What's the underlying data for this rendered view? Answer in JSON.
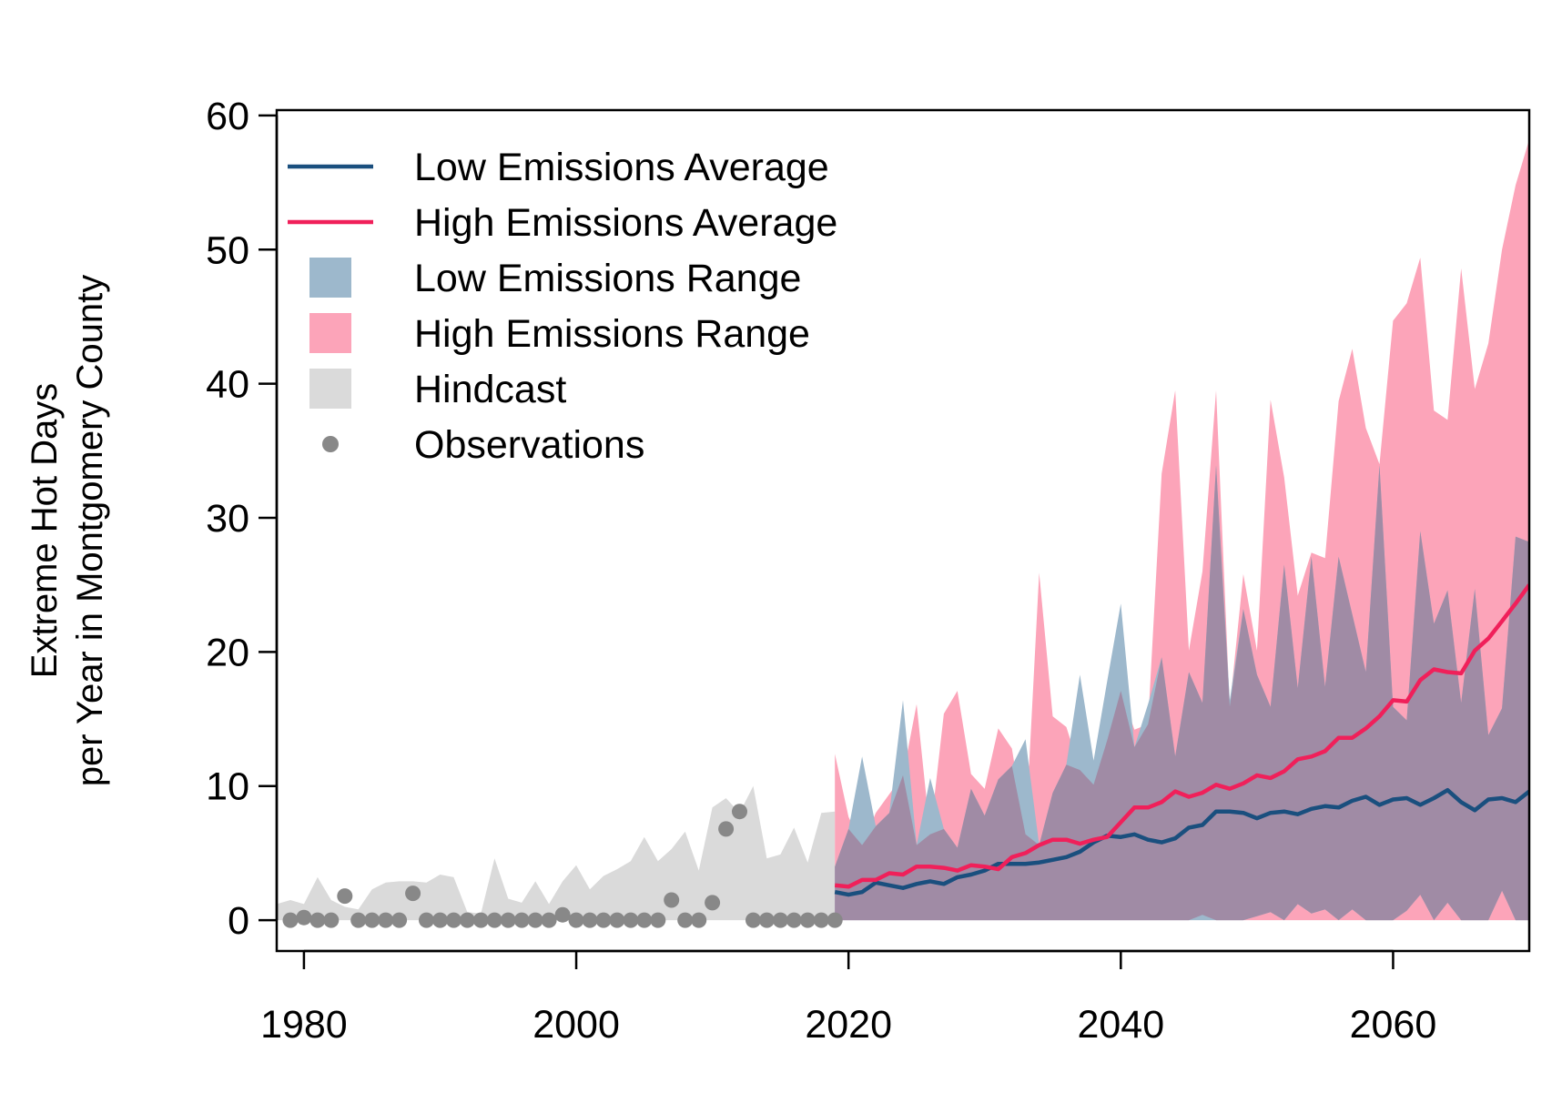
{
  "chart_data": {
    "type": "area",
    "title": "",
    "xlabel": "",
    "ylabel": [
      "Extreme Hot Days",
      "per Year in Montgomery County"
    ],
    "xlim": [
      1978,
      2070
    ],
    "ylim": [
      -2.3,
      60.4
    ],
    "x_ticks": [
      1980,
      2000,
      2020,
      2040,
      2060
    ],
    "y_ticks": [
      0,
      10,
      20,
      30,
      40,
      50,
      60
    ],
    "legend_position": "top-left",
    "legend": [
      {
        "label": "Low Emissions Average",
        "kind": "line",
        "color": "#1a4f7e"
      },
      {
        "label": "High Emissions Average",
        "kind": "line",
        "color": "#f0205a"
      },
      {
        "label": "Low Emissions Range",
        "kind": "fill",
        "color": "#9db8cc"
      },
      {
        "label": "High Emissions Range",
        "kind": "fill",
        "color": "#fca4b9"
      },
      {
        "label": "Hindcast",
        "kind": "fill",
        "color": "#dadada"
      },
      {
        "label": "Observations",
        "kind": "point",
        "color": "#888888"
      }
    ],
    "colors": {
      "low_avg": "#1a4f7e",
      "high_avg": "#f0205a",
      "low_range": "#9db8cc",
      "high_range": "#fca4b9",
      "overlap": "#a08ba5",
      "hindcast": "#dadada",
      "observations": "#888888"
    },
    "hindcast_range": {
      "x": [
        1978,
        1979,
        1980,
        1981,
        1982,
        1983,
        1984,
        1985,
        1986,
        1987,
        1988,
        1989,
        1990,
        1991,
        1992,
        1993,
        1994,
        1995,
        1996,
        1997,
        1998,
        1999,
        2000,
        2001,
        2002,
        2003,
        2004,
        2005,
        2006,
        2007,
        2008,
        2009,
        2010,
        2011,
        2012,
        2013,
        2014,
        2015,
        2016,
        2017,
        2018,
        2019
      ],
      "upper": [
        1.2,
        1.5,
        1.2,
        3.2,
        1.5,
        1.0,
        0.8,
        2.3,
        2.8,
        2.9,
        2.9,
        2.8,
        3.4,
        3.2,
        0.6,
        0.5,
        4.6,
        1.6,
        1.3,
        2.9,
        1.2,
        2.9,
        4.1,
        2.3,
        3.3,
        3.8,
        4.4,
        6.2,
        4.4,
        5.3,
        6.6,
        3.7,
        8.4,
        9.1,
        8.0,
        10.0,
        4.6,
        4.9,
        6.9,
        4.3,
        8.0,
        8.1
      ],
      "lower": [
        0,
        0,
        0,
        0,
        0,
        0,
        0,
        0,
        0,
        0,
        0,
        0,
        0,
        0,
        0,
        0,
        0,
        0,
        0,
        0,
        0,
        0,
        0,
        0,
        0,
        0,
        0,
        0,
        0,
        0,
        0,
        0,
        0,
        0,
        0,
        0,
        0,
        0,
        0,
        0,
        0,
        0
      ]
    },
    "observations": {
      "x": [
        1979,
        1980,
        1981,
        1982,
        1983,
        1984,
        1985,
        1986,
        1987,
        1988,
        1989,
        1990,
        1991,
        1992,
        1993,
        1994,
        1995,
        1996,
        1997,
        1998,
        1999,
        2000,
        2001,
        2002,
        2003,
        2004,
        2005,
        2006,
        2007,
        2008,
        2009,
        2010,
        2011,
        2012,
        2013,
        2014,
        2015,
        2016,
        2017,
        2018,
        2019
      ],
      "y": [
        0,
        0.2,
        0,
        0,
        1.8,
        0,
        0,
        0,
        0,
        2.0,
        0,
        0,
        0,
        0,
        0,
        0,
        0,
        0,
        0,
        0,
        0.4,
        0,
        0,
        0,
        0,
        0,
        0,
        0,
        1.5,
        0,
        0,
        1.3,
        6.8,
        8.1,
        0,
        0,
        0,
        0,
        0,
        0,
        0
      ]
    },
    "low_range": {
      "x": [
        2019,
        2020,
        2021,
        2022,
        2023,
        2024,
        2025,
        2026,
        2027,
        2028,
        2029,
        2030,
        2031,
        2032,
        2033,
        2034,
        2035,
        2036,
        2037,
        2038,
        2039,
        2040,
        2041,
        2042,
        2043,
        2044,
        2045,
        2046,
        2047,
        2048,
        2049,
        2050,
        2051,
        2052,
        2053,
        2054,
        2055,
        2056,
        2057,
        2058,
        2059,
        2060,
        2061,
        2062,
        2063,
        2064,
        2065,
        2066,
        2067,
        2068,
        2069,
        2070
      ],
      "upper": [
        4.0,
        6.8,
        12.2,
        7.0,
        8.0,
        16.4,
        5.6,
        10.6,
        6.8,
        5.4,
        9.8,
        7.8,
        10.5,
        11.5,
        13.5,
        5.6,
        9.5,
        11.6,
        18.3,
        11.9,
        17.8,
        23.6,
        12.9,
        16.1,
        19.6,
        12.2,
        18.5,
        16.2,
        33.9,
        16.4,
        23.2,
        18.3,
        15.9,
        26.5,
        17.3,
        27.1,
        17.4,
        27.1,
        22.8,
        18.5,
        33.9,
        15.9,
        14.9,
        29.0,
        22.1,
        24.6,
        16.2,
        24.7,
        13.8,
        15.8,
        28.6,
        28.2
      ],
      "lower": [
        0,
        0,
        0,
        0,
        0,
        0,
        0,
        0,
        0,
        0,
        0,
        0,
        0,
        0,
        0,
        0,
        0,
        0,
        0,
        0,
        0,
        0,
        0,
        0,
        0,
        0,
        0,
        0,
        0,
        0,
        0,
        0.3,
        0.6,
        0,
        1.2,
        0.5,
        0.8,
        0,
        0.8,
        0,
        0,
        0,
        0.7,
        1.9,
        0,
        1.3,
        0,
        0,
        0,
        2.2,
        0,
        0
      ]
    },
    "high_range": {
      "x": [
        2019,
        2020,
        2021,
        2022,
        2023,
        2024,
        2025,
        2026,
        2027,
        2028,
        2029,
        2030,
        2031,
        2032,
        2033,
        2034,
        2035,
        2036,
        2037,
        2038,
        2039,
        2040,
        2041,
        2042,
        2043,
        2044,
        2045,
        2046,
        2047,
        2048,
        2049,
        2050,
        2051,
        2052,
        2053,
        2054,
        2055,
        2056,
        2057,
        2058,
        2059,
        2060,
        2061,
        2062,
        2063,
        2064,
        2065,
        2066,
        2067,
        2068,
        2069,
        2070
      ],
      "upper": [
        12.4,
        7.7,
        5.6,
        8.0,
        9.4,
        10.8,
        16.1,
        6.4,
        15.4,
        17.1,
        10.9,
        9.8,
        14.3,
        12.8,
        6.4,
        25.9,
        15.2,
        14.4,
        11.2,
        10.1,
        13.4,
        17.1,
        14.2,
        14.6,
        33.3,
        39.5,
        20.1,
        26.0,
        39.5,
        15.9,
        25.8,
        20.1,
        38.8,
        33.0,
        24.2,
        27.4,
        27.0,
        38.7,
        42.6,
        36.7,
        34.0,
        44.7,
        46.0,
        49.4,
        38.0,
        37.3,
        48.6,
        39.6,
        43.0,
        50.0,
        54.8,
        58.2
      ],
      "lower": [
        0,
        0,
        0,
        0,
        0,
        0,
        0,
        0,
        0,
        0,
        0,
        0,
        0,
        0,
        0,
        0,
        0,
        0,
        0,
        0,
        0,
        0,
        0,
        0,
        0,
        0,
        0,
        0.4,
        0,
        0,
        0,
        0,
        0,
        0,
        0,
        0,
        0,
        0,
        0,
        0,
        0,
        0,
        0,
        0,
        0,
        0,
        0,
        0,
        0,
        0,
        0,
        0
      ]
    },
    "series": [
      {
        "name": "Low Emissions Average",
        "x": [
          2019,
          2020,
          2021,
          2022,
          2023,
          2024,
          2025,
          2026,
          2027,
          2028,
          2029,
          2030,
          2031,
          2032,
          2033,
          2034,
          2035,
          2036,
          2037,
          2038,
          2039,
          2040,
          2041,
          2042,
          2043,
          2044,
          2045,
          2046,
          2047,
          2048,
          2049,
          2050,
          2051,
          2052,
          2053,
          2054,
          2055,
          2056,
          2057,
          2058,
          2059,
          2060,
          2061,
          2062,
          2063,
          2064,
          2065,
          2066,
          2067,
          2068,
          2069,
          2070
        ],
        "values": [
          2.1,
          1.9,
          2.1,
          2.8,
          2.6,
          2.4,
          2.7,
          2.9,
          2.7,
          3.2,
          3.4,
          3.7,
          4.2,
          4.2,
          4.2,
          4.3,
          4.5,
          4.7,
          5.1,
          5.8,
          6.3,
          6.2,
          6.4,
          6.0,
          5.8,
          6.1,
          6.9,
          7.1,
          8.1,
          8.1,
          8.0,
          7.6,
          8.0,
          8.1,
          7.9,
          8.3,
          8.5,
          8.4,
          8.9,
          9.2,
          8.6,
          9.0,
          9.1,
          8.6,
          9.1,
          9.7,
          8.8,
          8.2,
          9.0,
          9.1,
          8.8,
          9.6
        ]
      },
      {
        "name": "High Emissions Average",
        "x": [
          2019,
          2020,
          2021,
          2022,
          2023,
          2024,
          2025,
          2026,
          2027,
          2028,
          2029,
          2030,
          2031,
          2032,
          2033,
          2034,
          2035,
          2036,
          2037,
          2038,
          2039,
          2040,
          2041,
          2042,
          2043,
          2044,
          2045,
          2046,
          2047,
          2048,
          2049,
          2050,
          2051,
          2052,
          2053,
          2054,
          2055,
          2056,
          2057,
          2058,
          2059,
          2060,
          2061,
          2062,
          2063,
          2064,
          2065,
          2066,
          2067,
          2068,
          2069,
          2070
        ],
        "values": [
          2.6,
          2.5,
          3.0,
          3.0,
          3.5,
          3.4,
          4.0,
          4.0,
          3.9,
          3.7,
          4.1,
          4.0,
          3.8,
          4.7,
          5.0,
          5.6,
          6.0,
          6.0,
          5.7,
          6.0,
          6.2,
          7.3,
          8.4,
          8.4,
          8.8,
          9.6,
          9.2,
          9.5,
          10.1,
          9.8,
          10.2,
          10.8,
          10.6,
          11.1,
          12.0,
          12.2,
          12.6,
          13.6,
          13.6,
          14.3,
          15.2,
          16.4,
          16.3,
          17.9,
          18.7,
          18.5,
          18.4,
          20.1,
          21.0,
          22.3,
          23.6,
          25.0
        ]
      }
    ]
  }
}
